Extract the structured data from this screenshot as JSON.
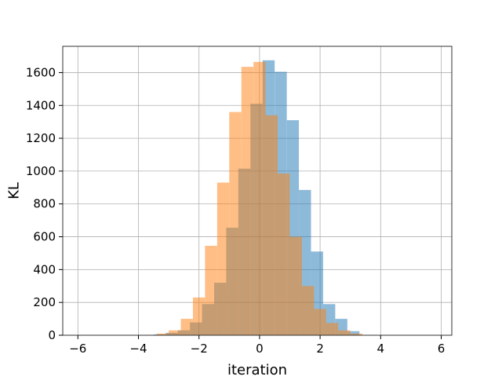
{
  "chart_data": {
    "type": "bar",
    "title": "",
    "xlabel": "iteration",
    "ylabel": "KL",
    "xlim": [
      -6.5,
      6.35
    ],
    "ylim": [
      0,
      1760
    ],
    "xticks": [
      -6,
      -4,
      -2,
      0,
      2,
      4,
      6
    ],
    "xtick_labels": [
      "−6",
      "−4",
      "−2",
      "0",
      "2",
      "4",
      "6"
    ],
    "yticks": [
      0,
      200,
      400,
      600,
      800,
      1000,
      1200,
      1400,
      1600
    ],
    "ytick_labels": [
      "0",
      "200",
      "400",
      "600",
      "800",
      "1000",
      "1200",
      "1400",
      "1600"
    ],
    "grid": true,
    "overlap_color": "#c49c76",
    "series": [
      {
        "color": "#1f77b4",
        "alpha": 0.5,
        "bin_edges": [
          -3.5,
          -3.1,
          -2.7,
          -2.3,
          -1.9,
          -1.5,
          -1.1,
          -0.7,
          -0.3,
          0.1,
          0.5,
          0.9,
          1.3,
          1.7,
          2.1,
          2.5,
          2.9,
          3.3
        ],
        "counts": [
          5,
          15,
          30,
          78,
          190,
          320,
          655,
          1015,
          1410,
          1675,
          1605,
          1310,
          885,
          510,
          190,
          100,
          25
        ]
      },
      {
        "color": "#ff7f0e",
        "alpha": 0.5,
        "bin_edges": [
          -3.4,
          -3.0,
          -2.6,
          -2.2,
          -1.8,
          -1.4,
          -1.0,
          -0.6,
          -0.2,
          0.2,
          0.6,
          1.0,
          1.4,
          1.8,
          2.2,
          2.6,
          3.0,
          3.4
        ],
        "counts": [
          10,
          30,
          100,
          230,
          545,
          930,
          1360,
          1635,
          1665,
          1340,
          985,
          600,
          300,
          160,
          75,
          30,
          10
        ]
      }
    ]
  }
}
